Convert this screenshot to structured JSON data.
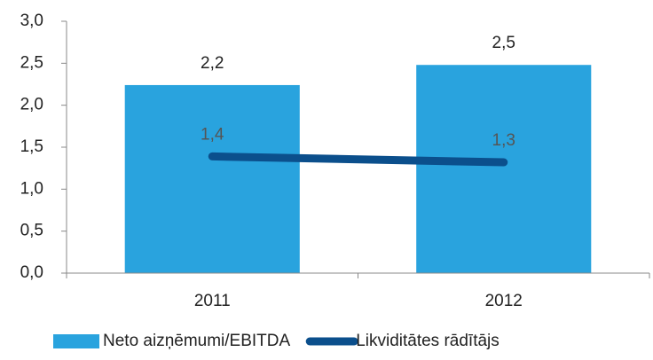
{
  "chart_data": {
    "type": "bar",
    "categories": [
      "2011",
      "2012"
    ],
    "series": [
      {
        "name": "Neto aizņēmumi/EBITDA",
        "type": "bar",
        "color": "#29a3de",
        "values": [
          2.24,
          2.48
        ],
        "value_labels": [
          "2,2",
          "2,5"
        ]
      },
      {
        "name": "Likviditātes rādītājs",
        "type": "line",
        "color": "#0b4f8c",
        "values": [
          1.39,
          1.32
        ],
        "value_labels": [
          "1,4",
          "1,3"
        ]
      }
    ],
    "ylim": [
      0,
      3
    ],
    "yticks": [
      {
        "value": 0,
        "label": "0,0"
      },
      {
        "value": 0.5,
        "label": "0,5"
      },
      {
        "value": 1,
        "label": "1,0"
      },
      {
        "value": 1.5,
        "label": "1,5"
      },
      {
        "value": 2,
        "label": "2,0"
      },
      {
        "value": 2.5,
        "label": "2,5"
      },
      {
        "value": 3,
        "label": "3,0"
      }
    ],
    "legend": "bottom"
  }
}
